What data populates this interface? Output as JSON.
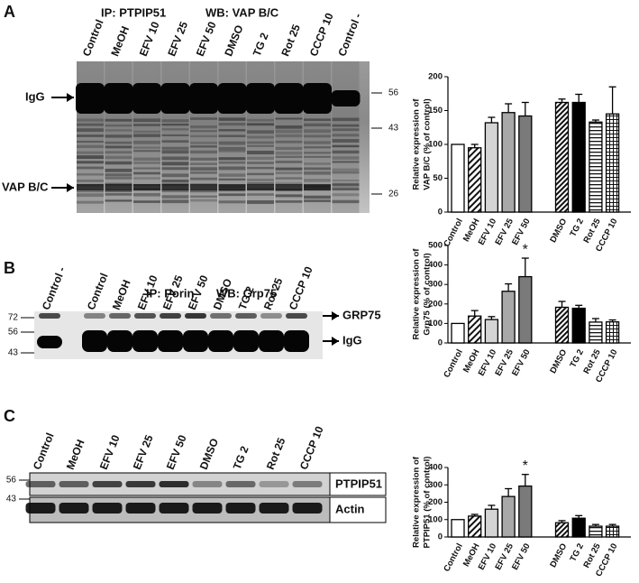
{
  "blots": [
    {
      "letter": "A",
      "title": [
        "IP: PTPIP51",
        "WB: VAP B/C"
      ],
      "lanes": [
        "Control",
        "MeOH",
        "EFV 10",
        "EFV 25",
        "EFV 50",
        "DMSO",
        "TG 2",
        "Rot 25",
        "CCCP 10",
        "Control -"
      ],
      "markers": [
        56,
        43,
        26
      ],
      "bands": [
        "IgG",
        "VAP B/C"
      ]
    },
    {
      "letter": "B",
      "title": [
        "IP: Porin",
        "WB: Grp75"
      ],
      "lanes": [
        "Control -",
        "Control",
        "MeOH",
        "EFV 10",
        "EFV 25",
        "EFV 50",
        "DMSO",
        "TG 2",
        "Rot 25",
        "CCCP 10"
      ],
      "markers": [
        72,
        56,
        43
      ],
      "bands": [
        "GRP75",
        "IgG"
      ]
    },
    {
      "letter": "C",
      "lanes": [
        "Control",
        "MeOH",
        "EFV 10",
        "EFV 25",
        "EFV 50",
        "DMSO",
        "TG 2",
        "Rot 25",
        "CCCP 10"
      ],
      "markers": [
        56,
        43
      ],
      "bands": [
        "PTPIP51",
        "Actin"
      ]
    }
  ],
  "chart_data": [
    {
      "type": "bar",
      "ylabel": [
        "Relative expression of",
        "VAP B/C (% of control)"
      ],
      "categories": [
        "Control",
        "MeOH",
        "EFV 10",
        "EFV 25",
        "EFV 50",
        "DMSO",
        "TG 2",
        "Rot 25",
        "CCCP 10"
      ],
      "values": [
        100,
        95,
        132,
        147,
        142,
        162,
        162,
        133,
        145
      ],
      "errors": [
        0,
        5,
        8,
        13,
        20,
        5,
        12,
        3,
        40
      ],
      "fills": [
        "white",
        "hatch",
        "#d4d4d4",
        "#a8a8a8",
        "#7a7a7a",
        "hatch-dense",
        "black",
        "hstripe",
        "grid"
      ],
      "ylim": [
        0,
        200
      ],
      "yticks": [
        0,
        50,
        100,
        150,
        200
      ]
    },
    {
      "type": "bar",
      "ylabel": [
        "Relative expression of",
        "Grp75 (% of control)"
      ],
      "categories": [
        "Control",
        "MeOH",
        "EFV 10",
        "EFV 25",
        "EFV 50",
        "DMSO",
        "TG 2",
        "Rot 25",
        "CCCP 10"
      ],
      "values": [
        100,
        138,
        120,
        265,
        340,
        183,
        178,
        107,
        108
      ],
      "errors": [
        0,
        28,
        15,
        38,
        95,
        30,
        15,
        18,
        10
      ],
      "fills": [
        "white",
        "hatch",
        "#d4d4d4",
        "#a8a8a8",
        "#7a7a7a",
        "hatch-dense",
        "black",
        "hstripe",
        "grid"
      ],
      "ylim": [
        0,
        500
      ],
      "yticks": [
        0,
        100,
        200,
        300,
        400,
        500
      ],
      "annotations": [
        {
          "index": 4,
          "text": "*"
        }
      ]
    },
    {
      "type": "bar",
      "ylabel": [
        "Relative expression of",
        "PTPIP51 (% of control)"
      ],
      "categories": [
        "Control",
        "MeOH",
        "EFV 10",
        "EFV 25",
        "EFV 50",
        "DMSO",
        "TG 2",
        "Rot 25",
        "CCCP 10"
      ],
      "values": [
        100,
        120,
        160,
        233,
        293,
        82,
        108,
        62,
        62
      ],
      "errors": [
        0,
        10,
        22,
        45,
        67,
        12,
        15,
        10,
        10
      ],
      "fills": [
        "white",
        "hatch",
        "#d4d4d4",
        "#a8a8a8",
        "#7a7a7a",
        "hatch-dense",
        "black",
        "hstripe",
        "grid"
      ],
      "ylim": [
        0,
        400
      ],
      "yticks": [
        0,
        100,
        200,
        300,
        400
      ],
      "annotations": [
        {
          "index": 4,
          "text": "*"
        }
      ]
    }
  ]
}
